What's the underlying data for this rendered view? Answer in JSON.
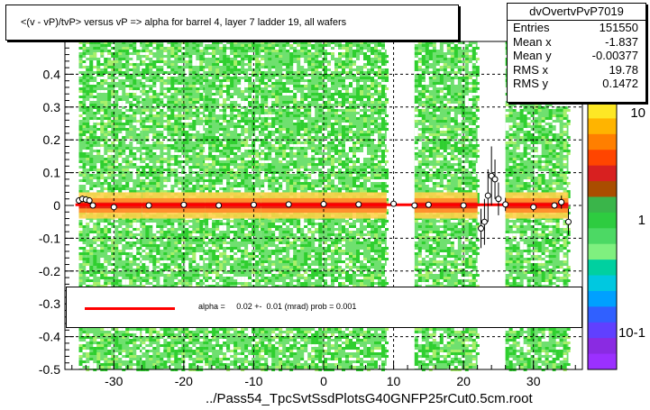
{
  "title": "<(v - vP)/tvP> versus   vP => alpha for barrel 4, layer 7 ladder 19, all wafers",
  "stats": {
    "name": "dvOvertvPvP7019",
    "rows": [
      {
        "label": "Entries",
        "value": "151550"
      },
      {
        "label": "Mean x",
        "value": "-1.837"
      },
      {
        "label": "Mean y",
        "value": "-0.00377"
      },
      {
        "label": "RMS x",
        "value": "19.78"
      },
      {
        "label": "RMS y",
        "value": "0.1472"
      }
    ]
  },
  "legend": {
    "fit_text": "alpha =     0.02 +-  0.01 (mrad) prob = 0.001"
  },
  "footer": "../Pass54_TpcSvtSsdPlotsG40GNFP25rCut0.5cm.root",
  "colors": {
    "fit_line": "#ff0000",
    "frame": "#000000",
    "background": "#ffffff"
  },
  "chart_data": {
    "type": "heatmap",
    "xlim": [
      -37,
      37
    ],
    "ylim": [
      -0.5,
      0.5
    ],
    "x_ticks": [
      -30,
      -20,
      -10,
      0,
      10,
      20,
      30
    ],
    "y_ticks": [
      -0.5,
      -0.4,
      -0.3,
      -0.2,
      -0.1,
      0,
      0.1,
      0.2,
      0.3,
      0.4
    ],
    "y_tick_labels": [
      "-0.5",
      "-0.4",
      "-0.3",
      "-0.2",
      "-0.1",
      "0",
      "0.1",
      "0.2",
      "0.3",
      "0.4"
    ],
    "x_tick_labels": [
      "-30",
      "-20",
      "-10",
      "0",
      "10",
      "20",
      "30"
    ],
    "grid": true,
    "data_bands": [
      {
        "x": [
          -35,
          -34
        ],
        "y": [
          -0.5,
          0.5
        ]
      },
      {
        "x": [
          -34,
          -26
        ],
        "y": [
          -0.5,
          0.5
        ]
      },
      {
        "x": [
          -26,
          -17
        ],
        "y": [
          -0.5,
          0.5
        ]
      },
      {
        "x": [
          -17,
          -9
        ],
        "y": [
          -0.5,
          0.5
        ]
      },
      {
        "x": [
          -9,
          0
        ],
        "y": [
          -0.5,
          0.5
        ]
      },
      {
        "x": [
          0,
          9
        ],
        "y": [
          -0.5,
          0.5
        ]
      },
      {
        "x": [
          13,
          22
        ],
        "y": [
          -0.5,
          0.5
        ]
      },
      {
        "x": [
          26,
          35
        ],
        "y": [
          -0.5,
          0.5
        ]
      }
    ],
    "profile": {
      "x": [
        -35,
        -34.5,
        -34,
        -33.5,
        -33,
        -30,
        -25,
        -20,
        -15,
        -10,
        -5,
        0,
        5,
        10,
        13,
        15,
        20,
        22.5,
        23,
        23.5,
        24,
        24.5,
        25,
        26,
        30,
        33,
        34,
        35
      ],
      "y": [
        0.015,
        0.02,
        0.018,
        0.015,
        0.0,
        -0.005,
        0.0,
        0.002,
        0.0,
        0.002,
        0.003,
        0.004,
        0.003,
        0.005,
        0.0,
        0.002,
        0.0,
        -0.07,
        -0.05,
        0.03,
        0.09,
        0.08,
        0.02,
        0.003,
        -0.005,
        0.0,
        0.01,
        -0.05
      ],
      "err": [
        0.01,
        0.01,
        0.01,
        0.01,
        0.005,
        0.002,
        0.002,
        0.002,
        0.002,
        0.002,
        0.002,
        0.002,
        0.002,
        0.002,
        0.005,
        0.002,
        0.002,
        0.06,
        0.07,
        0.08,
        0.09,
        0.06,
        0.05,
        0.02,
        0.002,
        0.01,
        0.02,
        0.04
      ]
    },
    "fit": {
      "slope_mrad": 0.02,
      "slope_err_mrad": 0.01,
      "prob": 0.001
    },
    "colorbar": {
      "scale": "log",
      "labels": [
        "10",
        "1",
        "10-1"
      ]
    }
  }
}
